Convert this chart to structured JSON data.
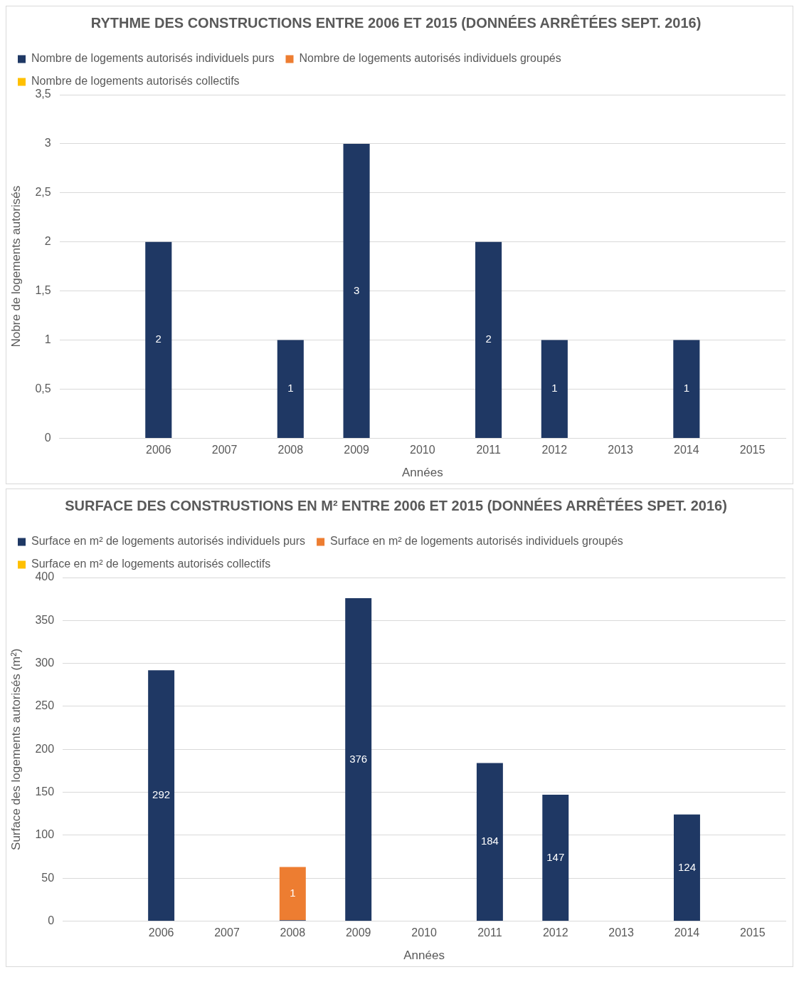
{
  "chart_data": [
    {
      "type": "bar",
      "title": "RYTHME DES CONSTRUCTIONS ENTRE 2006 ET 2015 (DONNÉES ARRÊTÉES SEPT. 2016)",
      "xlabel": "Années",
      "ylabel": "Nobre de logements autorisés",
      "stacked": true,
      "categories": [
        null,
        "2006",
        "2007",
        "2008",
        "2009",
        "2010",
        "2011",
        "2012",
        "2013",
        "2014",
        "2015"
      ],
      "series": [
        {
          "name": "Nombre de logements autorisés individuels purs",
          "color": "#1f3864",
          "values": [
            null,
            2,
            0,
            1,
            3,
            0,
            2,
            1,
            0,
            1,
            0
          ],
          "value_labels": [
            null,
            "2",
            null,
            "1",
            "3",
            null,
            "2",
            "1",
            null,
            "1",
            null
          ]
        },
        {
          "name": "Nombre de logements autorisés individuels groupés",
          "color": "#ed7d31",
          "values": [
            null,
            0,
            0,
            0,
            0,
            0,
            0,
            0,
            0,
            0,
            0
          ]
        },
        {
          "name": "Nombre de logements autorisés collectifs",
          "color": "#ffc000",
          "values": [
            null,
            0,
            0,
            0,
            0,
            0,
            0,
            0,
            0,
            0,
            0
          ]
        }
      ],
      "ylim": [
        0,
        3.5
      ],
      "yticks": [
        0,
        {
          "value": 0.5,
          "label": "0,5"
        },
        1,
        {
          "value": 1.5,
          "label": "1,5"
        },
        2,
        {
          "value": 2.5,
          "label": "2,5"
        },
        3,
        {
          "value": 3.5,
          "label": "3,5"
        }
      ],
      "grid": "y",
      "legend": "top"
    },
    {
      "type": "bar",
      "title": "SURFACE DES CONSTRUSTIONS EN M² ENTRE 2006 ET 2015 (DONNÉES ARRÊTÉES SPET. 2016)",
      "xlabel": "Années",
      "ylabel": "Surface des logements autorisés (m²)",
      "stacked": true,
      "categories": [
        null,
        "2006",
        "2007",
        "2008",
        "2009",
        "2010",
        "2011",
        "2012",
        "2013",
        "2014",
        "2015"
      ],
      "series": [
        {
          "name": "Surface en m² de logements autorisés individuels purs",
          "color": "#1f3864",
          "values": [
            null,
            292,
            0,
            1,
            376,
            0,
            184,
            147,
            0,
            124,
            0
          ],
          "value_labels": [
            null,
            "292",
            null,
            "1",
            "376",
            null,
            "184",
            "147",
            null,
            "124",
            null
          ]
        },
        {
          "name": "Surface en m² de logements autorisés individuels groupés",
          "color": "#ed7d31",
          "values": [
            null,
            0,
            0,
            62,
            0,
            0,
            0,
            0,
            0,
            0,
            0
          ]
        },
        {
          "name": "Surface en m² de logements autorisés collectifs",
          "color": "#ffc000",
          "values": [
            null,
            0,
            0,
            0,
            0,
            0,
            0,
            0,
            0,
            0,
            0
          ]
        }
      ],
      "ylim": [
        0,
        400
      ],
      "yticks": [
        0,
        50,
        100,
        150,
        200,
        250,
        300,
        350,
        400
      ],
      "grid": "y",
      "legend": "top"
    }
  ]
}
